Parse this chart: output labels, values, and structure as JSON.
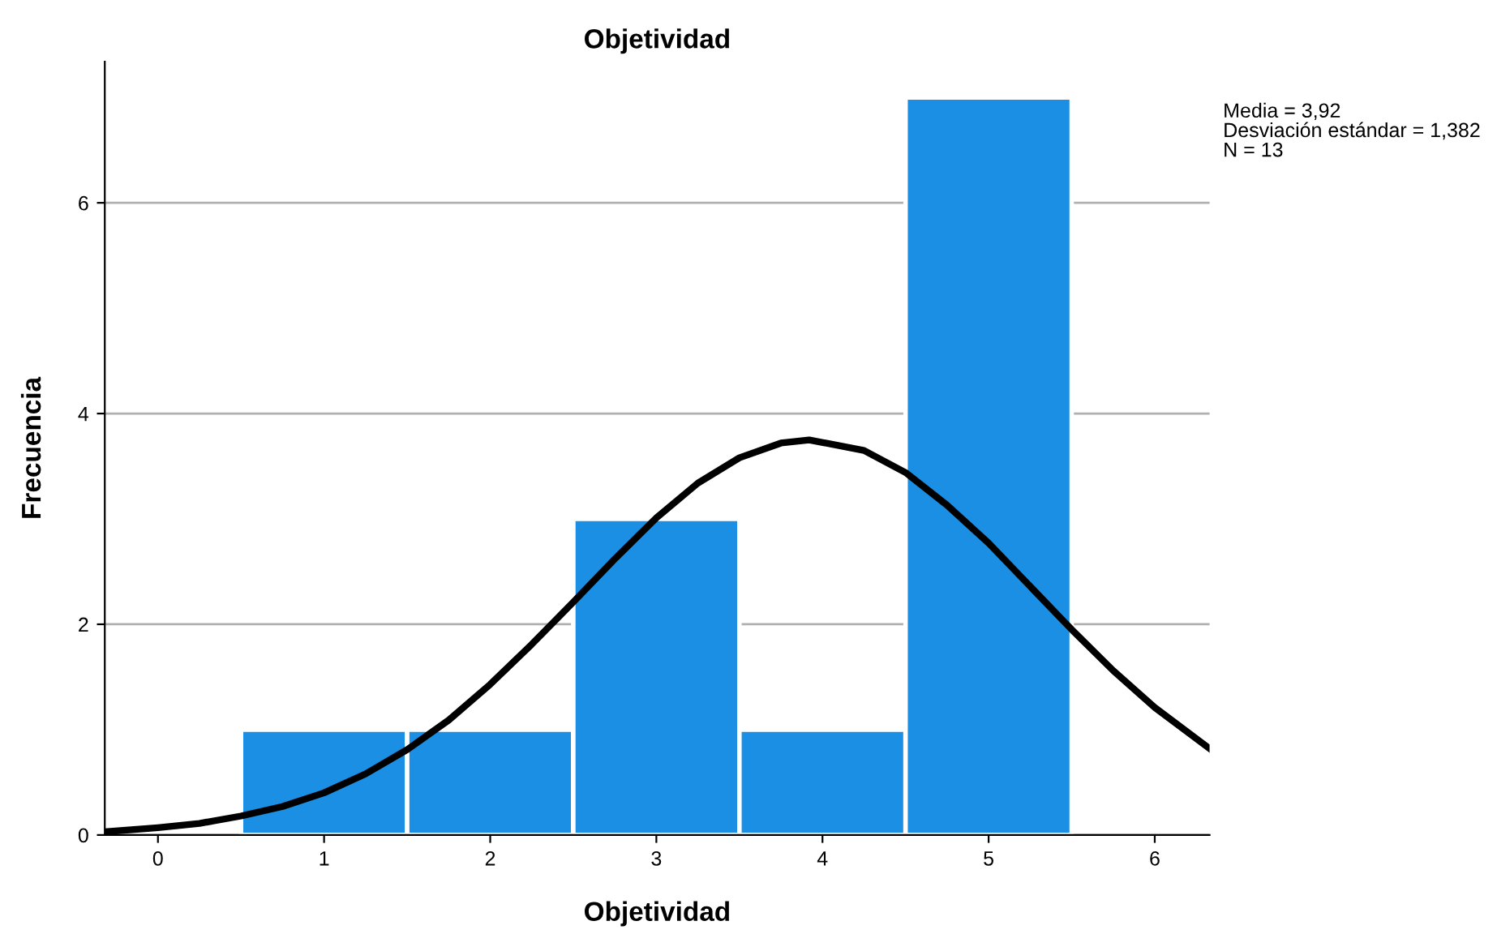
{
  "chart_data": {
    "type": "histogram",
    "title": "Objetividad",
    "xlabel": "Objetividad",
    "ylabel": "Frecuencia",
    "bins": [
      0.5,
      1.5,
      2.5,
      3.5,
      4.5,
      5.5
    ],
    "values": [
      1,
      1,
      3,
      1,
      7
    ],
    "color": "#1a8fe3",
    "series": [
      {
        "type": "line",
        "color": "#000000",
        "x": [
          -0.32,
          0,
          0.25,
          0.5,
          0.75,
          1,
          1.25,
          1.5,
          1.75,
          2,
          2.25,
          2.5,
          2.75,
          3,
          3.25,
          3.5,
          3.75,
          3.92,
          4.25,
          4.5,
          4.75,
          5,
          5.25,
          5.5,
          5.75,
          6,
          6.33
        ],
        "values": [
          0.03,
          0.07,
          0.11,
          0.18,
          0.27,
          0.4,
          0.58,
          0.81,
          1.09,
          1.43,
          1.81,
          2.21,
          2.62,
          3.01,
          3.34,
          3.58,
          3.72,
          3.75,
          3.65,
          3.44,
          3.13,
          2.77,
          2.36,
          1.95,
          1.56,
          1.21,
          0.82
        ]
      }
    ],
    "xlim": [
      -0.32,
      6.33
    ],
    "ylim": [
      0,
      7.34
    ],
    "xticks": [
      0,
      1,
      2,
      3,
      4,
      5,
      6
    ],
    "yticks": [
      0,
      2,
      4,
      6
    ],
    "grid": "y",
    "annotations": [
      "Media = 3,92",
      "Desviación estándar = 1,382",
      "N = 13"
    ]
  }
}
